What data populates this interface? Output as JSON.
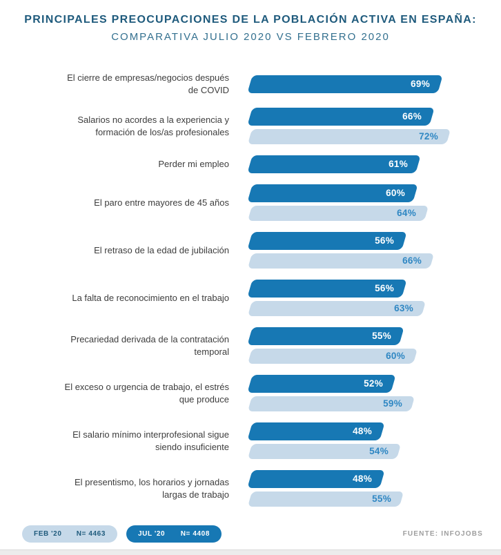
{
  "header": {
    "title": "PRINCIPALES PREOCUPACIONES DE LA POBLACIÓN ACTIVA EN ESPAÑA:",
    "subtitle": "COMPARATIVA JULIO 2020 VS FEBRERO 2020"
  },
  "chart_data": {
    "type": "bar",
    "orientation": "horizontal",
    "value_suffix": "%",
    "xlim": [
      0,
      100
    ],
    "grid": false,
    "legend_position": "bottom-left",
    "categories": [
      "El cierre de empresas/negocios después\nde COVID",
      "Salarios no acordes a la experiencia y\nformación de los/as profesionales",
      "Perder mi empleo",
      "El paro entre mayores de 45 años",
      "El retraso de la edad de jubilación",
      "La falta de reconocimiento en el trabajo",
      "Precariedad derivada de la contratación\ntemporal",
      "El exceso o urgencia de trabajo, el estrés\nque produce",
      "El salario mínimo interprofesional sigue\nsiendo insuficiente",
      "El presentismo, los horarios y jornadas\nlargas de trabajo"
    ],
    "series": [
      {
        "name": "JUL '20",
        "color": "#1778b4",
        "values": [
          69,
          66,
          61,
          60,
          56,
          56,
          55,
          52,
          48,
          48
        ]
      },
      {
        "name": "FEB '20",
        "color": "#c6d9e9",
        "values": [
          null,
          72,
          null,
          64,
          66,
          63,
          60,
          59,
          54,
          55
        ]
      }
    ]
  },
  "legend": {
    "feb": {
      "label": "FEB '20",
      "n": "N= 4463"
    },
    "jul": {
      "label": "JUL '20",
      "n": "N= 4408"
    }
  },
  "footer": {
    "source": "FUENTE: INFOJOBS"
  },
  "colors": {
    "jul_bar": "#1778b4",
    "feb_bar": "#c6d9e9",
    "title": "#1e5a7c",
    "subtitle": "#33708f",
    "category_label": "#3d3d3d",
    "feb_value_label": "#2f87c3",
    "source": "#9e9e9e"
  }
}
